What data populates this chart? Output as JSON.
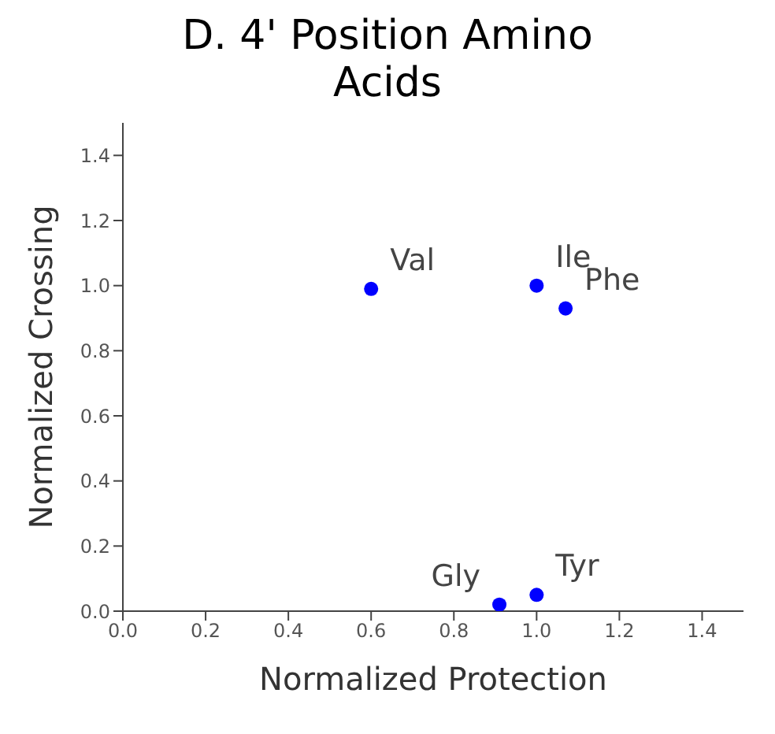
{
  "chart_data": {
    "type": "scatter",
    "title": "D. 4' Position Amino Acids",
    "xlabel": "Normalized Protection",
    "ylabel": "Normalized Crossing",
    "x": [
      0.6,
      1.0,
      1.07,
      0.91,
      1.0
    ],
    "series": [
      {
        "color": "#0000ff",
        "values": [
          0.99,
          1.0,
          0.93,
          0.02,
          0.05
        ]
      }
    ],
    "marker": "circle",
    "annotations": [
      {
        "text": "Val",
        "x": 0.6,
        "y": 0.99
      },
      {
        "text": "Ile",
        "x": 1.0,
        "y": 1.0
      },
      {
        "text": "Phe",
        "x": 1.07,
        "y": 0.93
      },
      {
        "text": "Gly",
        "x": 0.91,
        "y": 0.02
      },
      {
        "text": "Tyr",
        "x": 1.0,
        "y": 0.05
      }
    ],
    "xlim": [
      0,
      1.5
    ],
    "ylim": [
      0,
      1.5
    ],
    "xticks": [
      {
        "value": 0,
        "label": "0.0"
      },
      {
        "value": 0.2,
        "label": "0.2"
      },
      {
        "value": 0.4,
        "label": "0.4"
      },
      {
        "value": 0.6,
        "label": "0.6"
      },
      {
        "value": 0.8,
        "label": "0.8"
      },
      {
        "value": 1,
        "label": "1.0"
      },
      {
        "value": 1.2,
        "label": "1.2"
      },
      {
        "value": 1.4,
        "label": "1.4"
      }
    ],
    "yticks": [
      {
        "value": 0,
        "label": "0.0"
      },
      {
        "value": 0.2,
        "label": "0.2"
      },
      {
        "value": 0.4,
        "label": "0.4"
      },
      {
        "value": 0.6,
        "label": "0.6"
      },
      {
        "value": 0.8,
        "label": "0.8"
      },
      {
        "value": 1,
        "label": "1.0"
      },
      {
        "value": 1.2,
        "label": "1.2"
      },
      {
        "value": 1.4,
        "label": "1.4"
      }
    ],
    "grid": false
  }
}
